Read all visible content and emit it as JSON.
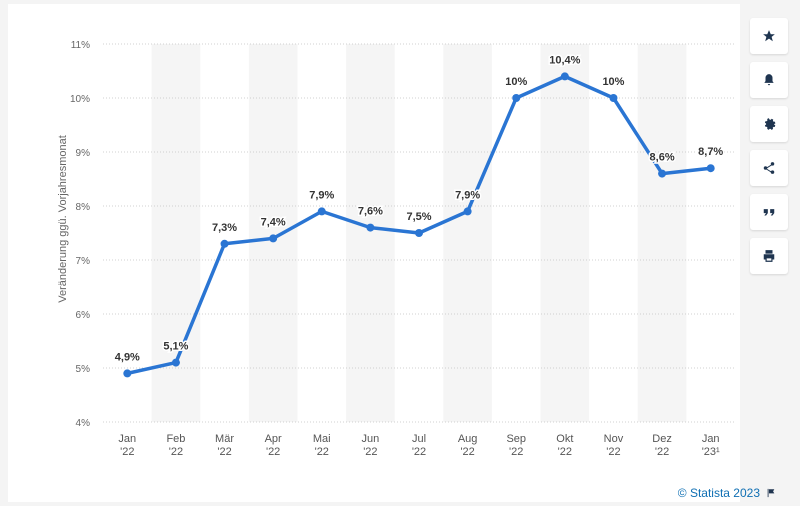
{
  "chart_data": {
    "type": "line",
    "categories": [
      "Jan '22",
      "Feb '22",
      "Mär '22",
      "Apr '22",
      "Mai '22",
      "Jun '22",
      "Jul '22",
      "Aug '22",
      "Sep '22",
      "Okt '22",
      "Nov '22",
      "Dez '22",
      "Jan '23¹"
    ],
    "category_lines": [
      [
        "Jan",
        "'22"
      ],
      [
        "Feb",
        "'22"
      ],
      [
        "Mär",
        "'22"
      ],
      [
        "Apr",
        "'22"
      ],
      [
        "Mai",
        "'22"
      ],
      [
        "Jun",
        "'22"
      ],
      [
        "Jul",
        "'22"
      ],
      [
        "Aug",
        "'22"
      ],
      [
        "Sep",
        "'22"
      ],
      [
        "Okt",
        "'22"
      ],
      [
        "Nov",
        "'22"
      ],
      [
        "Dez",
        "'22"
      ],
      [
        "Jan",
        "'23¹"
      ]
    ],
    "values": [
      4.9,
      5.1,
      7.3,
      7.4,
      7.9,
      7.6,
      7.5,
      7.9,
      10.0,
      10.4,
      10.0,
      8.6,
      8.7
    ],
    "data_labels": [
      "4,9%",
      "5,1%",
      "7,3%",
      "7,4%",
      "7,9%",
      "7,6%",
      "7,5%",
      "7,9%",
      "10%",
      "10,4%",
      "10%",
      "8,6%",
      "8,7%"
    ],
    "y_ticks": [
      "4%",
      "5%",
      "6%",
      "7%",
      "8%",
      "9%",
      "10%",
      "11%"
    ],
    "ylim": [
      4,
      11
    ],
    "ylabel": "Veränderung ggü. Vorjahresmonat",
    "xlabel": "",
    "title": "",
    "grid": true,
    "line_color": "#2a75d3",
    "band_color": "#f5f5f5"
  },
  "toolbar": {
    "items": [
      {
        "name": "star-icon"
      },
      {
        "name": "bell-icon"
      },
      {
        "name": "gear-icon"
      },
      {
        "name": "share-icon"
      },
      {
        "name": "quote-icon"
      },
      {
        "name": "print-icon"
      }
    ]
  },
  "credit": {
    "text": "© Statista 2023",
    "icon": "flag-icon"
  }
}
